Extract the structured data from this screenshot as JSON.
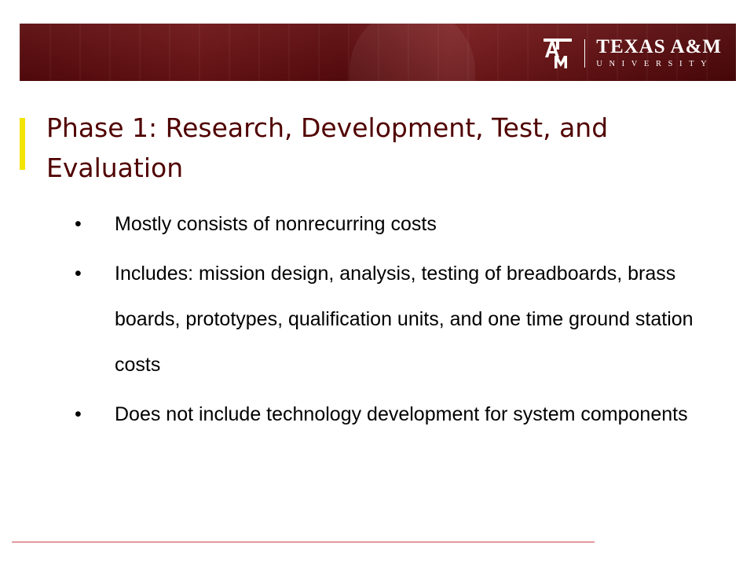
{
  "header": {
    "logo": {
      "mark": "ATM",
      "name": "TEXAS A&M",
      "subtitle": "UNIVERSITY"
    }
  },
  "slide": {
    "title": "Phase 1: Research, Development, Test, and Evaluation",
    "bullet_symbol": "•",
    "bullets": [
      "Mostly consists of nonrecurring costs",
      "Includes: mission design, analysis, testing of breadboards, brass boards, prototypes, qualification units, and one time ground station costs",
      "Does not include technology development for system components"
    ]
  },
  "colors": {
    "banner": "#5a0a0c",
    "title": "#500000",
    "accent_bar": "#f2e400",
    "footer_line": "#c9424a"
  }
}
